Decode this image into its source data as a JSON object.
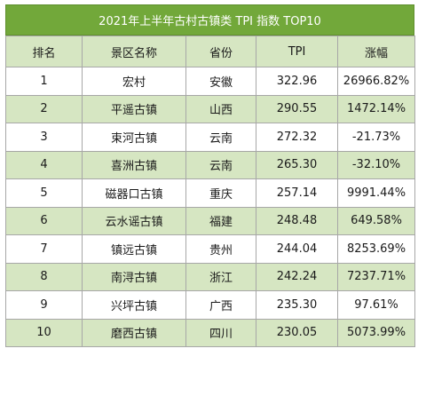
{
  "chart_data": {
    "type": "table",
    "title": "2021年上半年古村古镇类 TPI 指数 TOP10",
    "columns": [
      "排名",
      "景区名称",
      "省份",
      "TPI",
      "涨幅"
    ],
    "rows": [
      {
        "rank": "1",
        "name": "宏村",
        "province": "安徽",
        "tpi": "322.96",
        "change": "26966.82%"
      },
      {
        "rank": "2",
        "name": "平遥古镇",
        "province": "山西",
        "tpi": "290.55",
        "change": "1472.14%"
      },
      {
        "rank": "3",
        "name": "束河古镇",
        "province": "云南",
        "tpi": "272.32",
        "change": "-21.73%"
      },
      {
        "rank": "4",
        "name": "喜洲古镇",
        "province": "云南",
        "tpi": "265.30",
        "change": "-32.10%"
      },
      {
        "rank": "5",
        "name": "磁器口古镇",
        "province": "重庆",
        "tpi": "257.14",
        "change": "9991.44%"
      },
      {
        "rank": "6",
        "name": "云水谣古镇",
        "province": "福建",
        "tpi": "248.48",
        "change": "649.58%"
      },
      {
        "rank": "7",
        "name": "镇远古镇",
        "province": "贵州",
        "tpi": "244.04",
        "change": "8253.69%"
      },
      {
        "rank": "8",
        "name": "南浔古镇",
        "province": "浙江",
        "tpi": "242.24",
        "change": "7237.71%"
      },
      {
        "rank": "9",
        "name": "兴坪古镇",
        "province": "广西",
        "tpi": "235.30",
        "change": "97.61%"
      },
      {
        "rank": "10",
        "name": "磨西古镇",
        "province": "四川",
        "tpi": "230.05",
        "change": "5073.99%"
      }
    ]
  },
  "colors": {
    "title_bg": "#72a83a",
    "stripe_bg": "#d6e6c2",
    "border": "#a7a7a7"
  }
}
